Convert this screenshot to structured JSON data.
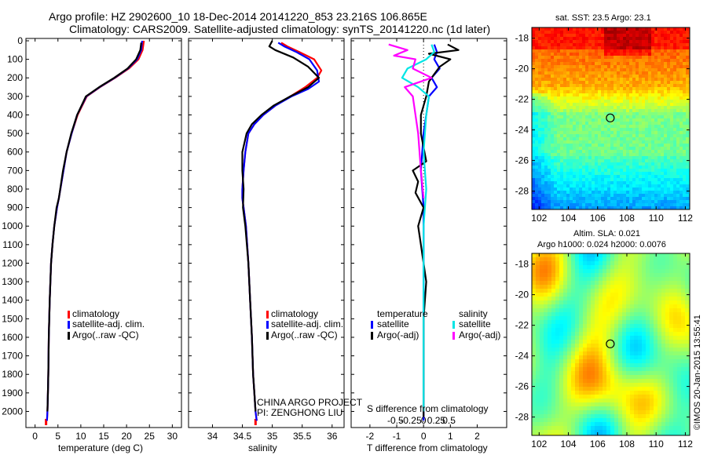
{
  "header": {
    "title_line1": "Argo profile: HZ 2902600_10 18-Dec-2014 20141220_853 23.216S 106.865E",
    "title_line2": "Climatology: CARS2009. Satellite-adjusted climatology: synTS_20141220.nc (1d later)"
  },
  "panels": {
    "temperature": {
      "xlabel": "temperature (deg C)",
      "legend": [
        "climatology",
        "satellite-adj. clim.",
        "Argo(..raw -QC)"
      ]
    },
    "salinity": {
      "xlabel": "salinity",
      "legend": [
        "climatology",
        "satellite-adj. clim.",
        "Argo(..raw -QC)"
      ],
      "project_line1": "CHINA ARGO PROJECT",
      "project_line2": "PI: ZENGHONG LIU"
    },
    "difference": {
      "xlabel": "T difference from climatology",
      "top_label": "S difference from climatology",
      "legend_temperature_title": "temperature",
      "legend_salinity_title": "salinity",
      "legend_temperature": [
        "satellite",
        "Argo(-adj)"
      ],
      "legend_salinity": [
        "satellite",
        "Argo(-adj)"
      ]
    },
    "sst_map": {
      "title": "sat. SST: 23.5 Argo: 23.1"
    },
    "sla_map": {
      "title_line1": "Altim. SLA: 0.021",
      "title_line2": "Argo h1000: 0.024 h2000: 0.0076",
      "side_note": "©IMOS 20-Jan-2015 13:55:41"
    }
  },
  "colors": {
    "climatology": "#ff0000",
    "satellite_adj": "#0000ff",
    "argo": "#000000",
    "sat_salinity": "#00e5e5",
    "argo_salinity": "#ff00ff"
  },
  "chart_data": [
    {
      "type": "line",
      "name": "temperature-profile",
      "xlabel": "temperature (deg C)",
      "ylabel": "",
      "xlim": [
        -2,
        32
      ],
      "ylim": [
        0,
        2070
      ],
      "xticks": [
        0,
        5,
        10,
        15,
        20,
        25,
        30
      ],
      "yticks": [
        0,
        100,
        200,
        300,
        400,
        500,
        600,
        700,
        800,
        900,
        1000,
        1100,
        1200,
        1300,
        1400,
        1500,
        1600,
        1700,
        1800,
        1900,
        2000
      ],
      "series": [
        {
          "name": "climatology",
          "x": [
            23.8,
            23.5,
            22.6,
            20.5,
            17.5,
            14.2,
            11.3,
            9.3,
            8.0,
            6.9,
            6.2,
            5.2,
            4.8,
            4.2,
            3.8,
            3.5,
            3.2,
            3.0,
            2.9,
            2.8,
            2.7,
            2.6
          ],
          "y": [
            0,
            50,
            100,
            150,
            200,
            250,
            300,
            400,
            500,
            600,
            700,
            850,
            900,
            1000,
            1100,
            1200,
            1400,
            1600,
            1800,
            1900,
            2000,
            2050
          ]
        },
        {
          "name": "satellite-adj. clim.",
          "x": [
            23.4,
            23.2,
            22.3,
            20.3,
            17.4,
            14.1,
            11.2,
            9.2,
            8.0,
            6.9,
            6.2,
            5.2,
            4.8,
            4.2,
            3.8,
            3.5,
            3.2,
            3.0,
            2.9,
            2.8,
            2.7,
            2.6
          ],
          "y": [
            0,
            50,
            100,
            150,
            200,
            250,
            300,
            400,
            500,
            600,
            700,
            850,
            900,
            1000,
            1100,
            1200,
            1400,
            1600,
            1800,
            1900,
            2000,
            2050
          ]
        },
        {
          "name": "Argo(..raw -QC)",
          "x": [
            23.2,
            23.0,
            22.1,
            20.2,
            17.3,
            14.0,
            11.1,
            9.2,
            7.9,
            6.9,
            6.1,
            5.2,
            4.7,
            4.2,
            3.8,
            3.5,
            3.2,
            3.0,
            2.9,
            2.8,
            2.7
          ],
          "y": [
            10,
            50,
            100,
            150,
            200,
            250,
            300,
            400,
            500,
            600,
            700,
            850,
            900,
            1000,
            1100,
            1200,
            1400,
            1600,
            1800,
            1900,
            2000
          ]
        }
      ]
    },
    {
      "type": "line",
      "name": "salinity-profile",
      "xlabel": "salinity",
      "ylabel": "",
      "xlim": [
        33.6,
        36.2
      ],
      "ylim": [
        0,
        2070
      ],
      "xticks": [
        34,
        34.5,
        35,
        35.5,
        36
      ],
      "series": [
        {
          "name": "climatology",
          "x": [
            35.15,
            35.25,
            35.45,
            35.7,
            35.82,
            35.75,
            35.55,
            35.3,
            35.05,
            34.85,
            34.7,
            34.6,
            34.55,
            34.52,
            34.5,
            34.5,
            34.52,
            34.56,
            34.6,
            34.63,
            34.66,
            34.68,
            34.7,
            34.72,
            34.74
          ],
          "y": [
            10,
            30,
            60,
            100,
            160,
            200,
            250,
            300,
            350,
            400,
            450,
            500,
            600,
            700,
            800,
            850,
            900,
            1000,
            1200,
            1400,
            1600,
            1800,
            1900,
            2000,
            2050
          ]
        },
        {
          "name": "satellite-adj. clim.",
          "x": [
            35.1,
            35.2,
            35.4,
            35.62,
            35.75,
            35.78,
            35.6,
            35.32,
            35.05,
            34.85,
            34.7,
            34.6,
            34.55,
            34.52,
            34.5,
            34.5,
            34.52,
            34.56,
            34.6,
            34.63,
            34.66,
            34.68,
            34.7,
            34.72,
            34.74
          ],
          "y": [
            10,
            30,
            60,
            100,
            160,
            220,
            260,
            300,
            350,
            400,
            450,
            500,
            600,
            700,
            800,
            850,
            900,
            1000,
            1200,
            1400,
            1600,
            1800,
            1900,
            2000,
            2050
          ]
        },
        {
          "name": "Argo(..raw -QC)",
          "x": [
            35.0,
            34.95,
            35.05,
            35.35,
            35.6,
            35.78,
            35.6,
            35.3,
            35.02,
            34.82,
            34.66,
            34.57,
            34.5,
            34.5,
            34.52,
            34.51,
            34.55,
            34.6,
            34.63,
            34.66,
            34.68,
            34.7,
            34.72
          ],
          "y": [
            0,
            30,
            50,
            90,
            140,
            200,
            250,
            300,
            350,
            400,
            450,
            500,
            600,
            700,
            800,
            900,
            1000,
            1200,
            1400,
            1600,
            1800,
            1900,
            2000
          ]
        }
      ]
    },
    {
      "type": "line",
      "name": "difference-profile",
      "xlabel": "T difference from climatology",
      "top_label": "S difference from climatology",
      "xlim": [
        -2.7,
        3.1
      ],
      "ylim": [
        0,
        2070
      ],
      "xticks": [
        -2,
        -1,
        0,
        1,
        2
      ],
      "top_ticks": [
        "-0.5",
        "-0.25",
        "0",
        "0.25",
        "0.5"
      ],
      "series": [
        {
          "name": "temperature satellite",
          "x": [
            0.4,
            0.5,
            0.4,
            0.6,
            0.3,
            0.5,
            0.2,
            0.1,
            0.0,
            -0.1,
            0.0,
            0.0,
            0.0,
            0.0,
            0.0
          ],
          "y": [
            20,
            60,
            100,
            150,
            200,
            250,
            300,
            400,
            500,
            700,
            900,
            1200,
            1500,
            1800,
            2050
          ]
        },
        {
          "name": "temperature Argo(-adj)",
          "x": [
            0.9,
            1.3,
            0.2,
            1.0,
            0.6,
            0.4,
            0.2,
            0.1,
            -0.1,
            -0.1,
            0.1,
            -0.4,
            -0.2,
            -0.3,
            0.0,
            -0.2,
            -0.1,
            0.1,
            0.0,
            0.0,
            0.0,
            0.0,
            0.0
          ],
          "y": [
            20,
            50,
            70,
            100,
            140,
            180,
            220,
            300,
            400,
            500,
            650,
            700,
            760,
            820,
            900,
            1000,
            1100,
            1300,
            1500,
            1700,
            1900,
            1980,
            2030
          ]
        },
        {
          "name": "salinity satellite",
          "x": [
            0.3,
            0.4,
            0.1,
            -0.6,
            -0.8,
            -0.2,
            0.2,
            0.1,
            0.0,
            0.1,
            0.0,
            0.0,
            0.0,
            0.0
          ],
          "y": [
            20,
            60,
            100,
            150,
            200,
            250,
            300,
            400,
            600,
            800,
            1000,
            1300,
            1600,
            2000
          ]
        },
        {
          "name": "salinity Argo(-adj)",
          "x": [
            -1.3,
            -0.6,
            -1.1,
            -0.3,
            -0.4,
            0.3,
            -0.7,
            -0.4,
            -0.3,
            -0.2,
            -0.1,
            0.0
          ],
          "y": [
            20,
            50,
            80,
            100,
            150,
            200,
            250,
            300,
            400,
            500,
            700,
            850
          ]
        }
      ]
    },
    {
      "type": "heatmap",
      "name": "sst-map",
      "title": "sat. SST: 23.5 Argo: 23.1",
      "xlim": [
        101.5,
        112.3
      ],
      "ylim": [
        -29.2,
        -17.3
      ],
      "xticks": [
        102,
        104,
        106,
        108,
        110,
        112
      ],
      "yticks": [
        -18,
        -20,
        -22,
        -24,
        -26,
        -28
      ],
      "marker": {
        "x": 106.865,
        "y": -23.216
      }
    },
    {
      "type": "heatmap",
      "name": "sla-map",
      "title": "Altim. SLA: 0.021",
      "xlim": [
        101.5,
        112.3
      ],
      "ylim": [
        -29.2,
        -17.3
      ],
      "xticks": [
        102,
        104,
        106,
        108,
        110,
        112
      ],
      "yticks": [
        -18,
        -20,
        -22,
        -24,
        -26,
        -28
      ],
      "marker": {
        "x": 106.865,
        "y": -23.216
      }
    }
  ]
}
